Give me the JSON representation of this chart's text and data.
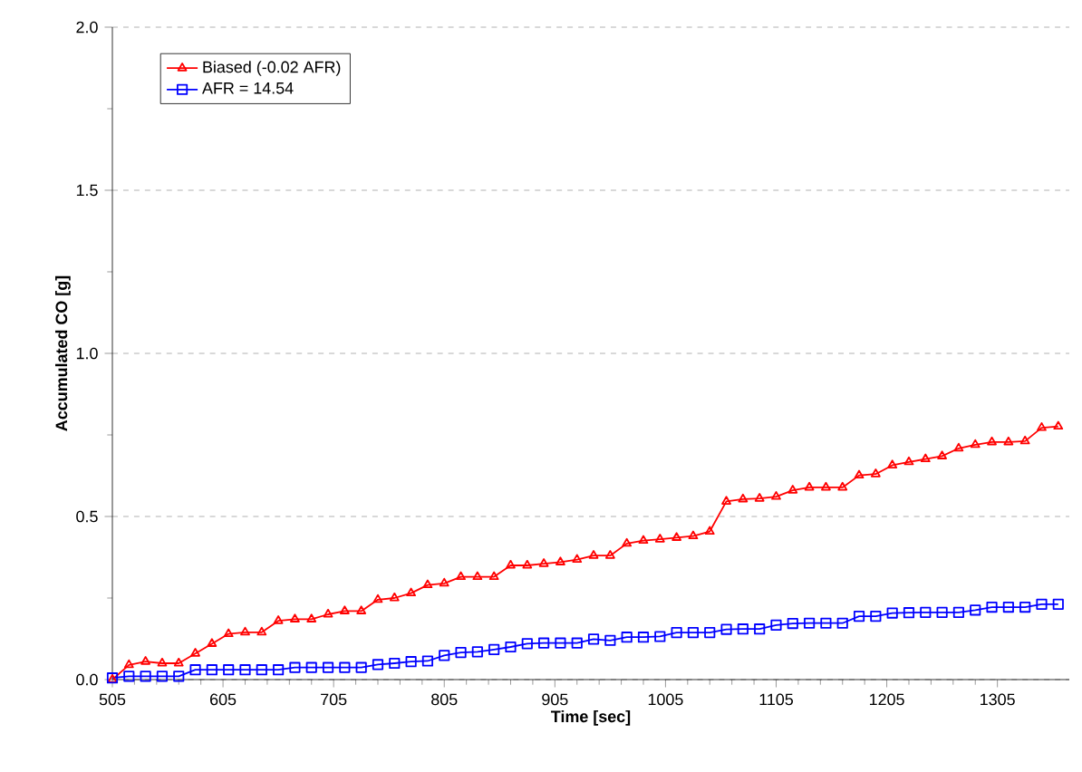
{
  "chart_data": {
    "type": "line",
    "xlabel": "Time [sec]",
    "ylabel": "Accumulated CO [g]",
    "x": [
      505,
      520,
      535,
      550,
      565,
      580,
      595,
      610,
      625,
      640,
      655,
      670,
      685,
      700,
      715,
      730,
      745,
      760,
      775,
      790,
      805,
      820,
      835,
      850,
      865,
      880,
      895,
      910,
      925,
      940,
      955,
      970,
      985,
      1000,
      1015,
      1030,
      1045,
      1060,
      1075,
      1090,
      1105,
      1120,
      1135,
      1150,
      1165,
      1180,
      1195,
      1210,
      1225,
      1240,
      1255,
      1270,
      1285,
      1300,
      1315,
      1330,
      1345,
      1360
    ],
    "series": [
      {
        "name": "Biased (-0.02 AFR)",
        "color": "#ff0000",
        "marker": "triangle",
        "values": [
          0.0,
          0.045,
          0.055,
          0.05,
          0.05,
          0.08,
          0.11,
          0.14,
          0.145,
          0.145,
          0.18,
          0.185,
          0.185,
          0.2,
          0.21,
          0.21,
          0.245,
          0.25,
          0.265,
          0.29,
          0.295,
          0.315,
          0.315,
          0.315,
          0.35,
          0.35,
          0.355,
          0.36,
          0.368,
          0.38,
          0.38,
          0.417,
          0.426,
          0.43,
          0.435,
          0.44,
          0.454,
          0.546,
          0.553,
          0.555,
          0.561,
          0.58,
          0.589,
          0.589,
          0.589,
          0.626,
          0.63,
          0.657,
          0.667,
          0.676,
          0.685,
          0.709,
          0.72,
          0.728,
          0.728,
          0.731,
          0.772,
          0.776
        ]
      },
      {
        "name": "AFR = 14.54",
        "color": "#0000ff",
        "marker": "square",
        "values": [
          0.005,
          0.01,
          0.01,
          0.01,
          0.01,
          0.03,
          0.03,
          0.03,
          0.03,
          0.03,
          0.03,
          0.037,
          0.037,
          0.037,
          0.037,
          0.037,
          0.046,
          0.05,
          0.055,
          0.057,
          0.074,
          0.083,
          0.085,
          0.092,
          0.1,
          0.11,
          0.112,
          0.112,
          0.112,
          0.124,
          0.12,
          0.13,
          0.13,
          0.132,
          0.144,
          0.144,
          0.144,
          0.154,
          0.155,
          0.155,
          0.167,
          0.172,
          0.173,
          0.173,
          0.173,
          0.194,
          0.194,
          0.204,
          0.205,
          0.206,
          0.206,
          0.206,
          0.213,
          0.222,
          0.222,
          0.222,
          0.231,
          0.231
        ]
      }
    ],
    "xlim": [
      505,
      1370
    ],
    "xticks": [
      505,
      605,
      705,
      805,
      905,
      1005,
      1105,
      1205,
      1305
    ],
    "ylim": [
      0,
      2
    ],
    "yticks": [
      {
        "value": 0,
        "label": "0.0"
      },
      {
        "value": 0.5,
        "label": "0.5"
      },
      {
        "value": 1,
        "label": "1.0"
      },
      {
        "value": 1.5,
        "label": "1.5"
      },
      {
        "value": 2,
        "label": "2.0"
      }
    ],
    "grid": "y",
    "legend": "top left",
    "line_style": "solid"
  }
}
